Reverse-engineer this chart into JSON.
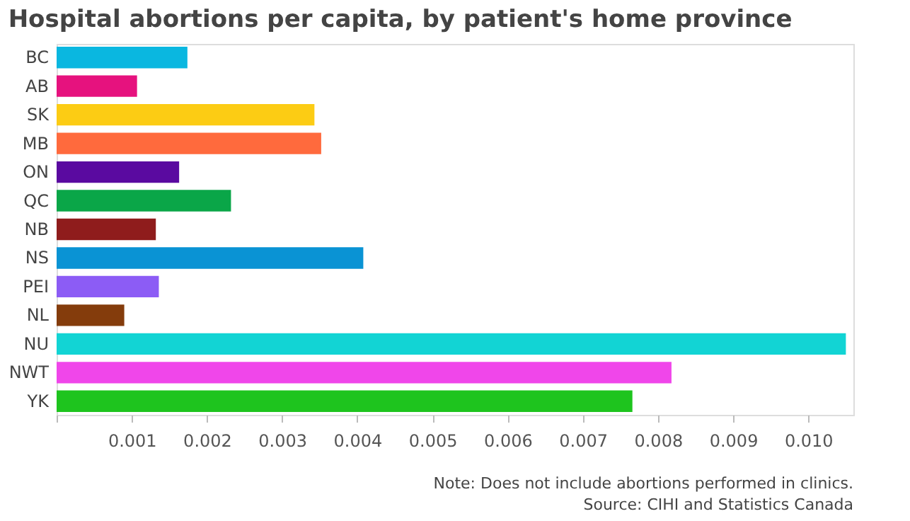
{
  "chart_data": {
    "type": "bar",
    "orientation": "horizontal",
    "title": "Hospital abortions per capita, by patient's home province",
    "categories": [
      "BC",
      "AB",
      "SK",
      "MB",
      "ON",
      "QC",
      "NB",
      "NS",
      "PEI",
      "NL",
      "NU",
      "NWT",
      "YK"
    ],
    "values": [
      0.00174,
      0.00107,
      0.00343,
      0.00352,
      0.00163,
      0.00232,
      0.00132,
      0.00408,
      0.00136,
      0.0009,
      0.0105,
      0.00818,
      0.00766
    ],
    "colors": [
      "#0ab7e0",
      "#e6127e",
      "#fccc14",
      "#ff6a3d",
      "#5a0aa0",
      "#0aa648",
      "#8f1c1c",
      "#0a93d4",
      "#8c5cf5",
      "#843c0c",
      "#12d4d4",
      "#f046ea",
      "#1ec41e"
    ],
    "xlim": [
      0,
      0.0106
    ],
    "xticks": [
      {
        "value": 0,
        "label": null
      },
      0.001,
      0.002,
      0.003,
      0.004,
      0.005,
      0.006,
      0.007,
      0.008,
      0.009,
      {
        "value": 0.01,
        "label": "0.010"
      }
    ],
    "grid": false,
    "annotations": [
      "Note: Does not include abortions performed in clinics.",
      "Source: CIHI and Statistics Canada"
    ]
  }
}
